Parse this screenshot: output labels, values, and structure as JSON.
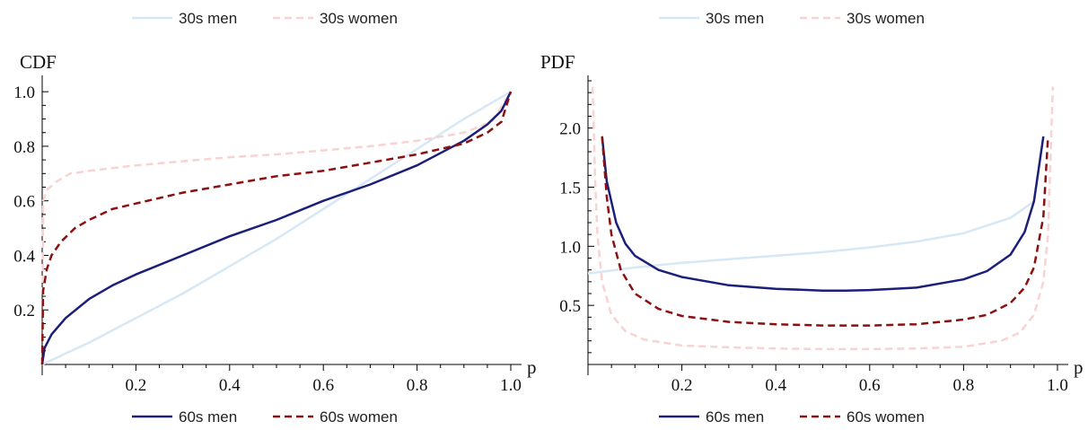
{
  "chart_data": [
    {
      "type": "line",
      "title": "",
      "ylabel": "CDF",
      "xlabel": "p",
      "xlim": [
        0,
        1
      ],
      "ylim": [
        0,
        1.04
      ],
      "x_ticks": [
        "0.2",
        "0.4",
        "0.6",
        "0.8",
        "1.0"
      ],
      "y_ticks": [
        "0.2",
        "0.4",
        "0.6",
        "0.8",
        "1.0"
      ],
      "x_tick_values": [
        0.2,
        0.4,
        0.6,
        0.8,
        1.0
      ],
      "y_tick_values": [
        0.2,
        0.4,
        0.6,
        0.8,
        1.0
      ],
      "series": [
        {
          "name": "30s men",
          "color": "#d6e8f5",
          "dash": "solid",
          "x": [
            0,
            0.05,
            0.1,
            0.2,
            0.3,
            0.4,
            0.5,
            0.6,
            0.7,
            0.8,
            0.9,
            0.95,
            1.0
          ],
          "y": [
            0,
            0.04,
            0.08,
            0.17,
            0.26,
            0.36,
            0.46,
            0.57,
            0.68,
            0.79,
            0.9,
            0.95,
            1.0
          ]
        },
        {
          "name": "30s women",
          "color": "#f9d2d2",
          "dash": "dashed",
          "x": [
            0,
            0.002,
            0.01,
            0.03,
            0.06,
            0.1,
            0.2,
            0.3,
            0.4,
            0.5,
            0.6,
            0.7,
            0.8,
            0.9,
            0.96,
            1.0
          ],
          "y": [
            0,
            0.6,
            0.64,
            0.67,
            0.7,
            0.71,
            0.73,
            0.745,
            0.76,
            0.77,
            0.785,
            0.8,
            0.82,
            0.85,
            0.89,
            1.0
          ]
        },
        {
          "name": "60s men",
          "color": "#1b1f7a",
          "dash": "solid",
          "x": [
            0,
            0.005,
            0.02,
            0.05,
            0.1,
            0.15,
            0.2,
            0.3,
            0.4,
            0.5,
            0.6,
            0.7,
            0.8,
            0.9,
            0.95,
            0.98,
            1.0
          ],
          "y": [
            0,
            0.06,
            0.11,
            0.17,
            0.24,
            0.29,
            0.33,
            0.4,
            0.47,
            0.53,
            0.6,
            0.66,
            0.73,
            0.82,
            0.88,
            0.93,
            1.0
          ]
        },
        {
          "name": "60s women",
          "color": "#8b1010",
          "dash": "dashed",
          "x": [
            0,
            0.002,
            0.01,
            0.02,
            0.04,
            0.07,
            0.1,
            0.15,
            0.2,
            0.3,
            0.4,
            0.5,
            0.6,
            0.7,
            0.8,
            0.9,
            0.95,
            0.98,
            1.0
          ],
          "y": [
            0,
            0.27,
            0.35,
            0.4,
            0.45,
            0.5,
            0.53,
            0.57,
            0.59,
            0.63,
            0.66,
            0.69,
            0.71,
            0.74,
            0.77,
            0.81,
            0.85,
            0.89,
            1.0
          ]
        }
      ]
    },
    {
      "type": "line",
      "title": "",
      "ylabel": "PDF",
      "xlabel": "p",
      "xlim": [
        0,
        1
      ],
      "ylim": [
        0,
        2.4
      ],
      "x_ticks": [
        "0.2",
        "0.4",
        "0.6",
        "0.8",
        "1.0"
      ],
      "y_ticks": [
        "0.5",
        "1.0",
        "1.5",
        "2.0"
      ],
      "x_tick_values": [
        0.2,
        0.4,
        0.6,
        0.8,
        1.0
      ],
      "y_tick_values": [
        0.5,
        1.0,
        1.5,
        2.0
      ],
      "series": [
        {
          "name": "30s men",
          "color": "#d6e8f5",
          "dash": "solid",
          "x": [
            0,
            0.1,
            0.2,
            0.3,
            0.4,
            0.5,
            0.6,
            0.7,
            0.8,
            0.9,
            0.95
          ],
          "y": [
            0.77,
            0.82,
            0.86,
            0.89,
            0.92,
            0.95,
            0.99,
            1.04,
            1.11,
            1.24,
            1.38
          ]
        },
        {
          "name": "30s women",
          "color": "#f9d2d2",
          "dash": "dashed",
          "x": [
            0.01,
            0.015,
            0.02,
            0.03,
            0.05,
            0.08,
            0.12,
            0.2,
            0.3,
            0.4,
            0.5,
            0.6,
            0.7,
            0.8,
            0.88,
            0.92,
            0.95,
            0.97,
            0.98,
            0.99
          ],
          "y": [
            2.35,
            1.6,
            1.1,
            0.7,
            0.42,
            0.28,
            0.21,
            0.16,
            0.145,
            0.135,
            0.13,
            0.13,
            0.135,
            0.15,
            0.2,
            0.27,
            0.42,
            0.7,
            1.1,
            2.35
          ]
        },
        {
          "name": "60s men",
          "color": "#1b1f7a",
          "dash": "solid",
          "x": [
            0.03,
            0.04,
            0.06,
            0.08,
            0.1,
            0.15,
            0.2,
            0.3,
            0.4,
            0.5,
            0.55,
            0.6,
            0.7,
            0.8,
            0.85,
            0.9,
            0.93,
            0.95,
            0.97
          ],
          "y": [
            1.93,
            1.55,
            1.2,
            1.02,
            0.92,
            0.8,
            0.74,
            0.67,
            0.64,
            0.625,
            0.625,
            0.63,
            0.65,
            0.72,
            0.79,
            0.93,
            1.12,
            1.38,
            1.93
          ]
        },
        {
          "name": "60s women",
          "color": "#8b1010",
          "dash": "dashed",
          "x": [
            0.03,
            0.04,
            0.05,
            0.07,
            0.1,
            0.15,
            0.2,
            0.3,
            0.4,
            0.5,
            0.6,
            0.7,
            0.8,
            0.85,
            0.9,
            0.93,
            0.95,
            0.97,
            0.98
          ],
          "y": [
            1.93,
            1.42,
            1.1,
            0.8,
            0.6,
            0.47,
            0.41,
            0.36,
            0.34,
            0.33,
            0.33,
            0.34,
            0.38,
            0.42,
            0.52,
            0.65,
            0.82,
            1.25,
            1.93
          ]
        }
      ]
    }
  ],
  "legend_top": [
    "30s men",
    "30s women"
  ],
  "legend_bottom": [
    "60s men",
    "60s women"
  ]
}
